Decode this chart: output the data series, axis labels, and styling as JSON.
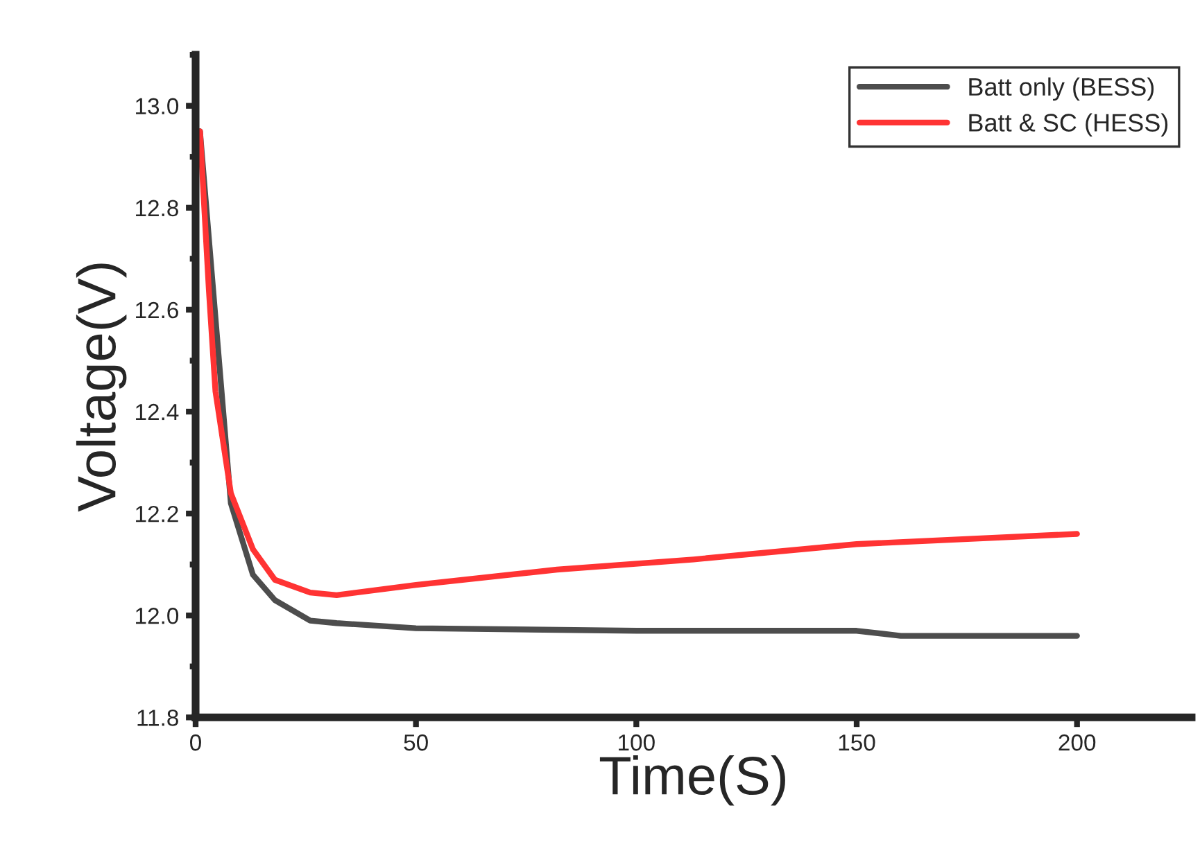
{
  "chart_data": {
    "type": "line",
    "xlabel": "Time(S)",
    "ylabel": "Voltage(V)",
    "xlim": [
      0,
      226
    ],
    "xticks": [
      0,
      50,
      100,
      150,
      200
    ],
    "ylim": [
      11.8,
      13.1
    ],
    "yticks": [
      {
        "value": 11.8,
        "label": "11.8"
      },
      {
        "value": 12.0,
        "label": "12.0"
      },
      {
        "value": 12.2,
        "label": "12.2"
      },
      {
        "value": 12.4,
        "label": "12.4"
      },
      {
        "value": 12.6,
        "label": "12.6"
      },
      {
        "value": 12.8,
        "label": "12.8"
      },
      {
        "value": 13.0,
        "label": "13.0"
      }
    ],
    "legend": "top right",
    "grid": false,
    "series": [
      {
        "name": "Batt only (BESS)",
        "color": "#4d4d4d",
        "x": [
          1,
          3,
          4.5,
          8,
          13,
          18,
          26,
          32,
          50,
          100,
          150,
          160,
          200
        ],
        "values": [
          12.95,
          null,
          null,
          12.22,
          12.08,
          12.03,
          11.99,
          11.985,
          11.975,
          11.97,
          11.97,
          11.96,
          11.96
        ]
      },
      {
        "name": "Batt & SC (HESS)",
        "color": "#ff3333",
        "x": [
          1,
          3,
          4.5,
          8,
          13,
          18,
          26,
          32,
          50,
          82,
          113,
          150,
          200
        ],
        "values": [
          12.95,
          12.64,
          12.44,
          12.24,
          12.13,
          12.07,
          12.045,
          12.04,
          12.06,
          12.09,
          12.11,
          12.14,
          12.16
        ]
      }
    ]
  }
}
